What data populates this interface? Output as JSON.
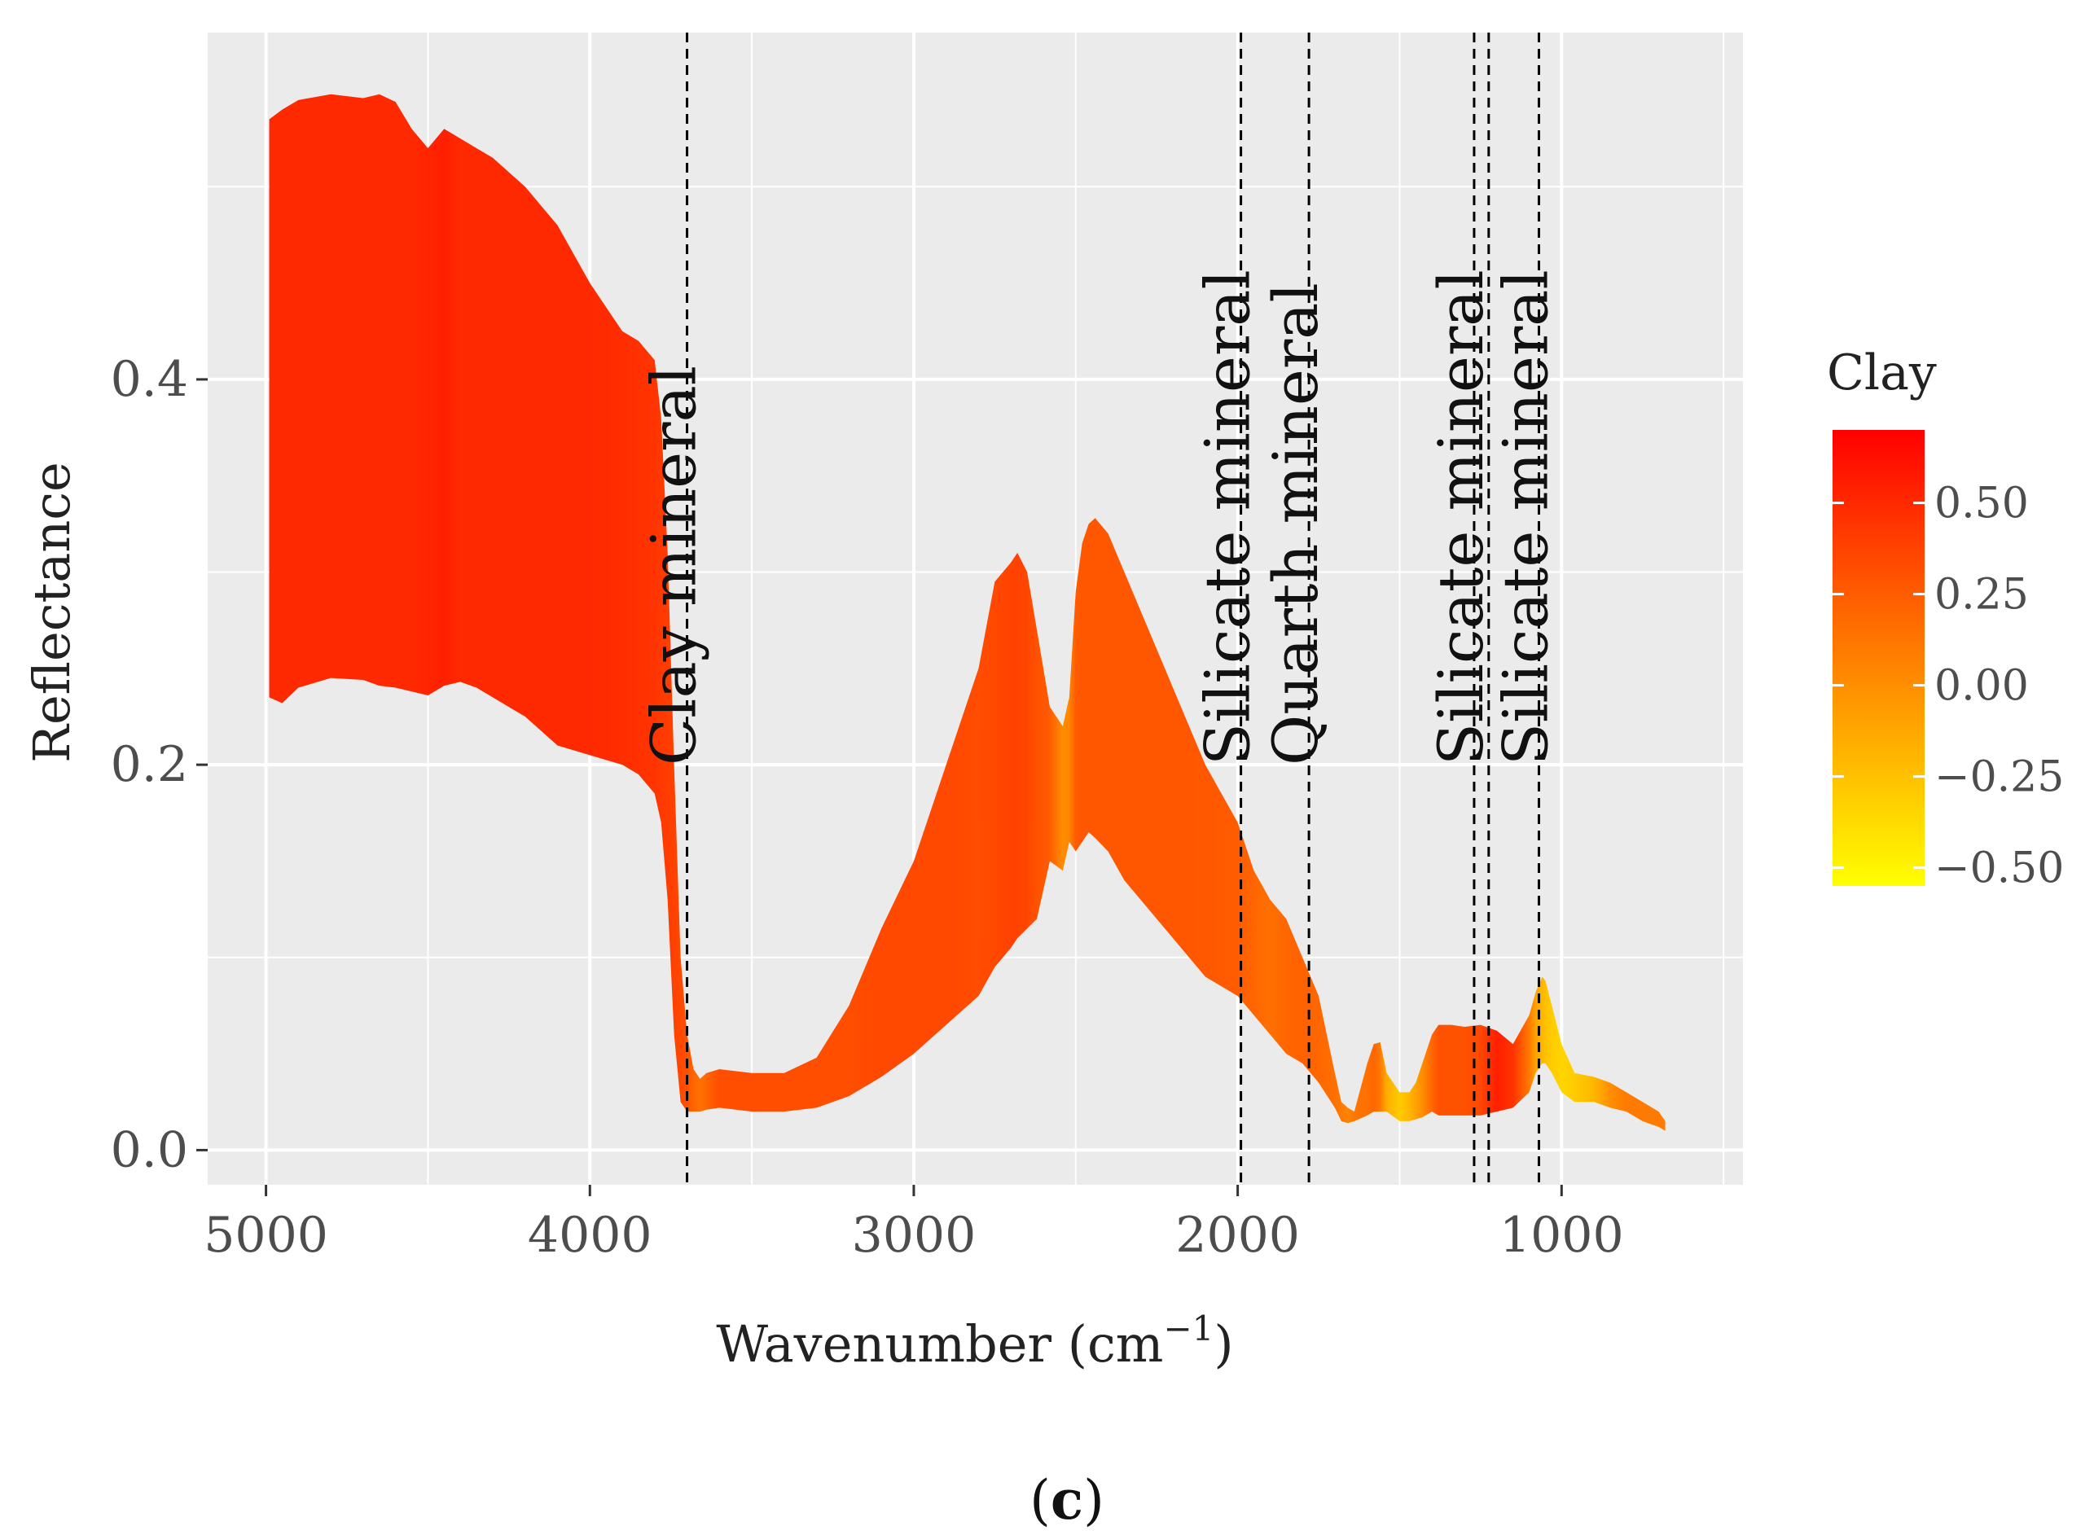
{
  "chart_data": {
    "type": "area",
    "title": "",
    "xlabel": "Wavenumber (cm",
    "xlabel_sup": "−1",
    "xlabel_close": ")",
    "ylabel": "Reflectance",
    "x_reversed": true,
    "xlim": [
      5180,
      440
    ],
    "ylim": [
      -0.018,
      0.58
    ],
    "x_ticks": [
      5000,
      4000,
      3000,
      2000,
      1000
    ],
    "x_tick_labels": [
      "5000",
      "4000",
      "3000",
      "2000",
      "1000"
    ],
    "y_ticks": [
      0.0,
      0.2,
      0.4
    ],
    "y_tick_labels": [
      "0.0",
      "0.2",
      "0.4"
    ],
    "x_minor_grid": [
      4500,
      3500,
      2500,
      1500,
      500
    ],
    "y_minor_grid": [
      0.1,
      0.3,
      0.5
    ],
    "band": {
      "x": [
        4990,
        4950,
        4900,
        4800,
        4700,
        4650,
        4600,
        4550,
        4500,
        4450,
        4400,
        4350,
        4300,
        4200,
        4100,
        4000,
        3900,
        3850,
        3800,
        3780,
        3760,
        3740,
        3720,
        3700,
        3680,
        3660,
        3640,
        3600,
        3500,
        3400,
        3300,
        3200,
        3100,
        3000,
        2900,
        2800,
        2750,
        2700,
        2680,
        2650,
        2620,
        2580,
        2540,
        2520,
        2500,
        2480,
        2460,
        2440,
        2400,
        2350,
        2300,
        2200,
        2100,
        2000,
        1950,
        1900,
        1850,
        1800,
        1750,
        1700,
        1680,
        1660,
        1640,
        1600,
        1580,
        1560,
        1540,
        1500,
        1470,
        1450,
        1430,
        1400,
        1380,
        1340,
        1300,
        1250,
        1200,
        1150,
        1100,
        1080,
        1060,
        1050,
        1030,
        1000,
        960,
        900,
        850,
        800,
        750,
        700,
        680
      ],
      "upper": [
        0.535,
        0.54,
        0.545,
        0.548,
        0.546,
        0.548,
        0.544,
        0.53,
        0.52,
        0.53,
        0.525,
        0.52,
        0.515,
        0.5,
        0.48,
        0.45,
        0.425,
        0.42,
        0.41,
        0.38,
        0.31,
        0.2,
        0.1,
        0.06,
        0.042,
        0.037,
        0.04,
        0.042,
        0.04,
        0.04,
        0.048,
        0.075,
        0.115,
        0.15,
        0.2,
        0.25,
        0.295,
        0.305,
        0.31,
        0.3,
        0.27,
        0.23,
        0.22,
        0.235,
        0.29,
        0.315,
        0.325,
        0.328,
        0.32,
        0.3,
        0.28,
        0.24,
        0.2,
        0.17,
        0.145,
        0.13,
        0.12,
        0.1,
        0.08,
        0.04,
        0.025,
        0.022,
        0.02,
        0.045,
        0.055,
        0.056,
        0.04,
        0.03,
        0.03,
        0.035,
        0.045,
        0.06,
        0.065,
        0.065,
        0.064,
        0.065,
        0.062,
        0.055,
        0.07,
        0.082,
        0.09,
        0.088,
        0.075,
        0.055,
        0.04,
        0.038,
        0.035,
        0.03,
        0.025,
        0.02,
        0.015
      ],
      "lower": [
        0.235,
        0.232,
        0.24,
        0.245,
        0.244,
        0.241,
        0.24,
        0.238,
        0.236,
        0.241,
        0.243,
        0.24,
        0.235,
        0.225,
        0.21,
        0.205,
        0.2,
        0.195,
        0.185,
        0.17,
        0.13,
        0.06,
        0.025,
        0.02,
        0.02,
        0.02,
        0.021,
        0.022,
        0.02,
        0.02,
        0.022,
        0.028,
        0.038,
        0.05,
        0.065,
        0.08,
        0.095,
        0.105,
        0.11,
        0.115,
        0.12,
        0.15,
        0.145,
        0.16,
        0.155,
        0.16,
        0.165,
        0.162,
        0.155,
        0.14,
        0.13,
        0.11,
        0.09,
        0.08,
        0.07,
        0.06,
        0.05,
        0.045,
        0.035,
        0.022,
        0.015,
        0.014,
        0.015,
        0.018,
        0.02,
        0.02,
        0.02,
        0.015,
        0.015,
        0.016,
        0.017,
        0.02,
        0.018,
        0.018,
        0.018,
        0.018,
        0.02,
        0.022,
        0.03,
        0.04,
        0.045,
        0.045,
        0.04,
        0.03,
        0.025,
        0.025,
        0.022,
        0.02,
        0.015,
        0.012,
        0.01
      ],
      "clay": [
        0.5,
        0.5,
        0.5,
        0.5,
        0.5,
        0.5,
        0.5,
        0.5,
        0.52,
        0.55,
        0.5,
        0.5,
        0.5,
        0.5,
        0.5,
        0.5,
        0.48,
        0.46,
        0.44,
        0.42,
        0.4,
        0.38,
        0.35,
        0.3,
        0.2,
        0.15,
        0.2,
        0.32,
        0.32,
        0.32,
        0.32,
        0.32,
        0.35,
        0.35,
        0.35,
        0.33,
        0.35,
        0.38,
        0.38,
        0.36,
        0.3,
        0.25,
        0.0,
        0.05,
        0.25,
        0.28,
        0.28,
        0.28,
        0.28,
        0.28,
        0.28,
        0.28,
        0.27,
        0.25,
        0.2,
        0.15,
        0.2,
        0.22,
        0.2,
        0.15,
        0.1,
        0.05,
        0.12,
        0.15,
        0.2,
        0.1,
        -0.15,
        -0.3,
        -0.2,
        -0.1,
        0.0,
        0.2,
        0.3,
        0.3,
        0.3,
        0.35,
        0.55,
        0.45,
        0.1,
        -0.1,
        -0.2,
        -0.25,
        -0.3,
        -0.35,
        -0.3,
        -0.2,
        0.0,
        0.1,
        0.1,
        0.1,
        0.1
      ]
    },
    "annotations": [
      {
        "x": 3700,
        "label": "Clay mineral"
      },
      {
        "x": 1990,
        "label": "Silicate mineral"
      },
      {
        "x": 1780,
        "label": "Quarth mineral"
      },
      {
        "x": 1270,
        "label": "Silicate mineral"
      },
      {
        "x": 1225,
        "label": ""
      },
      {
        "x": 1070,
        "label": "Silicate mineral"
      }
    ],
    "legend": {
      "title": "Clay",
      "placement": "right",
      "range": [
        -0.55,
        0.7
      ],
      "ticks": [
        0.5,
        0.25,
        0.0,
        -0.25,
        -0.5
      ],
      "tick_labels": [
        "0.50",
        "0.25",
        "0.00",
        "−0.25",
        "−0.50"
      ],
      "colors": [
        "#ffff00",
        "#ffbe00",
        "#ff7f00",
        "#ff4000",
        "#ff0000"
      ]
    },
    "grid": true,
    "panel_background": "#ebebeb",
    "grid_color": "#ffffff"
  },
  "figure": {
    "panel_label_open": "(",
    "panel_label_letter": "c",
    "panel_label_close": ")"
  }
}
